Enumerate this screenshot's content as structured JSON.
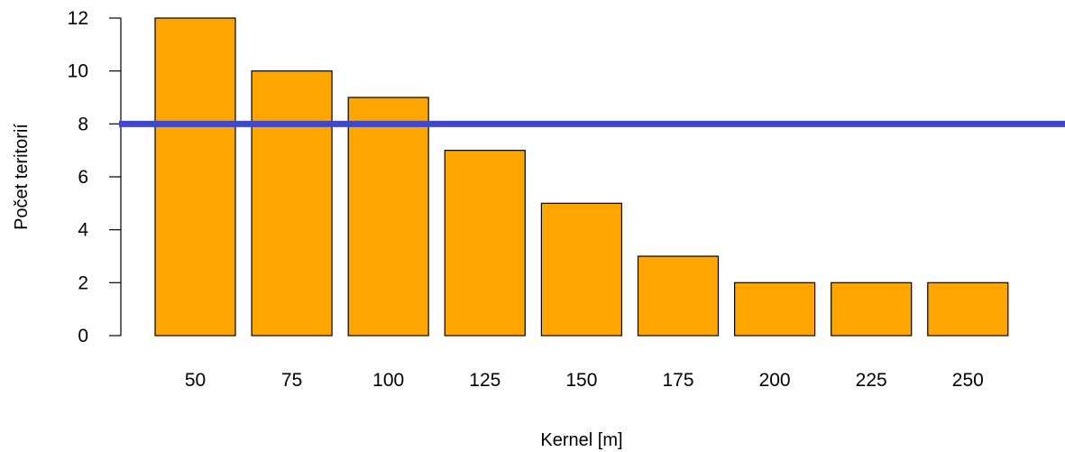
{
  "chart_data": {
    "type": "bar",
    "title": "",
    "xlabel": "Kernel [m]",
    "ylabel": "Počet teritorií",
    "categories": [
      "50",
      "75",
      "100",
      "125",
      "150",
      "175",
      "200",
      "225",
      "250"
    ],
    "values": [
      12,
      10,
      9,
      7,
      5,
      3,
      2,
      2,
      2
    ],
    "ylim": [
      0,
      12
    ],
    "yticks": [
      "0",
      "2",
      "4",
      "6",
      "8",
      "10",
      "12"
    ],
    "reference_line": {
      "y": 8,
      "color": "#3f48cc"
    },
    "bar_color": "#ffa500",
    "bar_stroke": "#000000",
    "grid": false,
    "legend": "none"
  }
}
